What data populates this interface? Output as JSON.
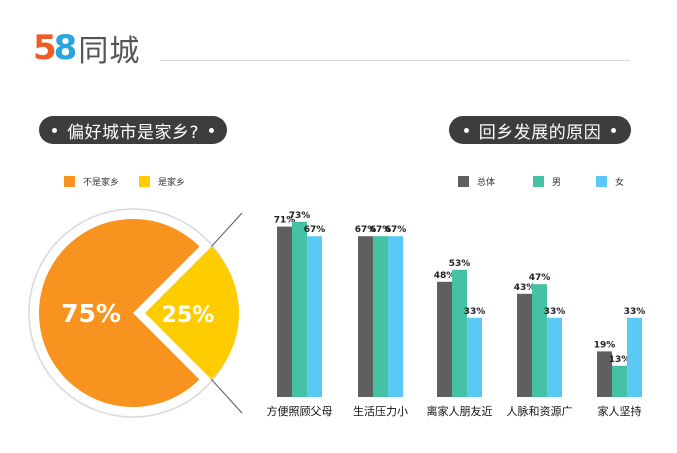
{
  "logo": {
    "digit_5": "5",
    "digit_8": "8",
    "text": "同城"
  },
  "left_panel": {
    "title": "偏好城市是家乡?",
    "legend": [
      {
        "label": "不是家乡",
        "color": "#f7931e"
      },
      {
        "label": "是家乡",
        "color": "#ffcc00"
      }
    ]
  },
  "right_panel": {
    "title": "回乡发展的原因",
    "legend": [
      {
        "label": "总体",
        "color": "#5f5f5f"
      },
      {
        "label": "男",
        "color": "#45c1a4"
      },
      {
        "label": "女",
        "color": "#5bc8f5"
      }
    ]
  },
  "chart_data": [
    {
      "type": "pie",
      "slices": [
        {
          "label": "不是家乡",
          "value": 75,
          "display": "75%",
          "color": "#f7931e"
        },
        {
          "label": "是家乡",
          "value": 25,
          "display": "25%",
          "color": "#ffcc00"
        }
      ]
    },
    {
      "type": "bar",
      "categories": [
        "方便照顾父母",
        "生活压力小",
        "离家人朋友近",
        "人脉和资源广",
        "家人坚持"
      ],
      "series": [
        {
          "name": "总体",
          "color": "#5f5f5f",
          "values": [
            71,
            67,
            48,
            43,
            19
          ],
          "labels": [
            "71%",
            "67%",
            "48%",
            "43%",
            "19%"
          ]
        },
        {
          "name": "男",
          "color": "#45c1a4",
          "values": [
            73,
            67,
            53,
            47,
            13
          ],
          "labels": [
            "73%",
            "67%",
            "53%",
            "47%",
            "13%"
          ]
        },
        {
          "name": "女",
          "color": "#5bc8f5",
          "values": [
            67,
            67,
            33,
            33,
            33
          ],
          "labels": [
            "67%",
            "67%",
            "33%",
            "33%",
            "33%"
          ]
        }
      ],
      "ylim": [
        0,
        100
      ],
      "grid": false
    }
  ]
}
